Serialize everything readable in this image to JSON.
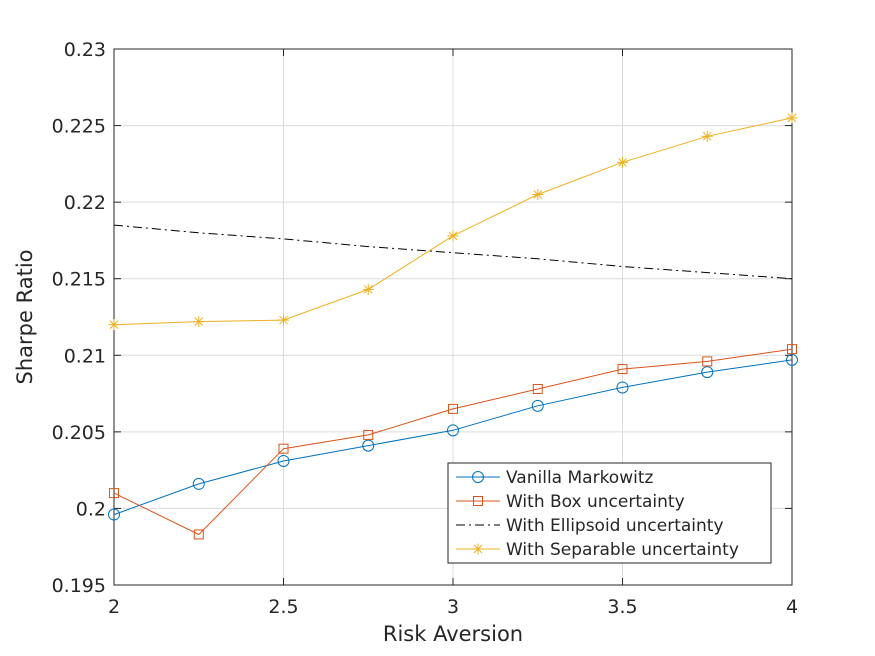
{
  "chart_data": {
    "type": "line",
    "title": "",
    "xlabel": "Risk Aversion",
    "ylabel": "Sharpe Ratio",
    "xlim": [
      2,
      4
    ],
    "ylim": [
      0.195,
      0.23
    ],
    "x_ticks": [
      "2",
      "2.5",
      "3",
      "3.5",
      "4"
    ],
    "y_ticks": [
      "0.195",
      "0.2",
      "0.205",
      "0.21",
      "0.215",
      "0.22",
      "0.225",
      "0.23"
    ],
    "grid": true,
    "legend_position": "bottom-right",
    "x": [
      2,
      2.25,
      2.5,
      2.75,
      3,
      3.25,
      3.5,
      3.75,
      4
    ],
    "series": [
      {
        "name": "Vanilla Markowitz",
        "color": "#0072BD",
        "marker": "circle",
        "line": "solid",
        "values": [
          0.1996,
          0.2016,
          0.2031,
          0.2041,
          0.2051,
          0.2067,
          0.2079,
          0.2089,
          0.2097
        ]
      },
      {
        "name": "With Box uncertainty",
        "color": "#D95319",
        "marker": "square",
        "line": "solid",
        "values": [
          0.201,
          0.1983,
          0.2039,
          0.2048,
          0.2065,
          0.2078,
          0.2091,
          0.2096,
          0.2104
        ]
      },
      {
        "name": "With Ellipsoid uncertainty",
        "color": "#000000",
        "marker": "none",
        "line": "dash-dot",
        "values": [
          0.2185,
          0.218,
          0.2176,
          0.2171,
          0.2167,
          0.2163,
          0.2158,
          0.2154,
          0.215
        ]
      },
      {
        "name": "With Separable uncertainty",
        "color": "#EDB120",
        "marker": "asterisk",
        "line": "solid",
        "values": [
          0.212,
          0.2122,
          0.2123,
          0.2143,
          0.2178,
          0.2205,
          0.2226,
          0.2243,
          0.2255
        ]
      }
    ]
  }
}
